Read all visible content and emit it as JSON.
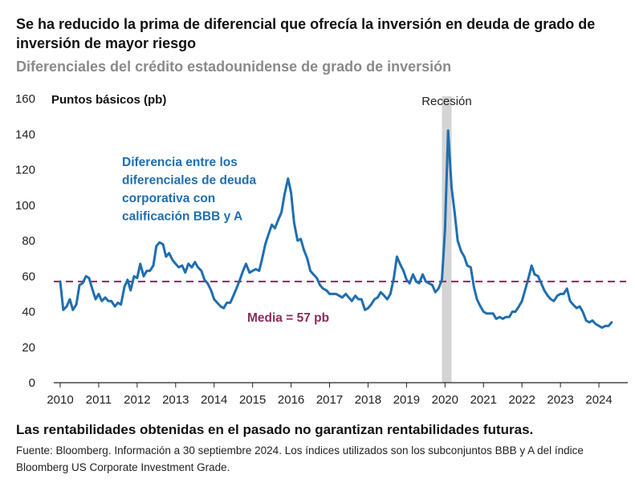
{
  "header": {
    "title": "Se ha reducido la prima de diferencial que ofrecía la inversión en deuda de grado de inversión de mayor riesgo",
    "subtitle": "Diferenciales del crédito estadounidense de grado de inversión"
  },
  "footer": {
    "disclaimer": "Las rentabilidades obtenidas en el pasado no garantizan rentabilidades futuras.",
    "source": "Fuente: Bloomberg. Información a 30 septiembre 2024. Los índices utilizados son los subconjuntos BBB y A del índice Bloomberg US Corporate Investment Grade."
  },
  "chart_data": {
    "type": "line",
    "ylabel": "Puntos básicos (pb)",
    "ylim": [
      0,
      160
    ],
    "yticks": [
      0,
      20,
      40,
      60,
      80,
      100,
      120,
      140,
      160
    ],
    "xlim": [
      2010,
      2024.75
    ],
    "xticks": [
      2010,
      2011,
      2012,
      2013,
      2014,
      2015,
      2016,
      2017,
      2018,
      2019,
      2020,
      2021,
      2022,
      2023,
      2024
    ],
    "grid": false,
    "series_annotation": "Diferencia entre los diferenciales de deuda corporativa con calificación BBB y A",
    "series_color": "#1f6eb0",
    "mean": {
      "value": 57,
      "label": "Media = 57 pb",
      "color": "#8b2a5c"
    },
    "recession": {
      "label": "Recesión",
      "start": 2019.92,
      "end": 2020.17,
      "color": "#d4d4d4"
    },
    "series": [
      {
        "values": [
          [
            2010.0,
            57
          ],
          [
            2010.08,
            41
          ],
          [
            2010.17,
            43
          ],
          [
            2010.25,
            47
          ],
          [
            2010.33,
            41
          ],
          [
            2010.42,
            44
          ],
          [
            2010.5,
            55
          ],
          [
            2010.58,
            56
          ],
          [
            2010.67,
            60
          ],
          [
            2010.75,
            59
          ],
          [
            2010.83,
            53
          ],
          [
            2010.92,
            47
          ],
          [
            2011.0,
            50
          ],
          [
            2011.08,
            46
          ],
          [
            2011.17,
            48
          ],
          [
            2011.25,
            46
          ],
          [
            2011.33,
            46
          ],
          [
            2011.42,
            43
          ],
          [
            2011.5,
            45
          ],
          [
            2011.58,
            44
          ],
          [
            2011.67,
            54
          ],
          [
            2011.75,
            58
          ],
          [
            2011.83,
            52
          ],
          [
            2011.92,
            60
          ],
          [
            2012.0,
            59
          ],
          [
            2012.08,
            67
          ],
          [
            2012.17,
            60
          ],
          [
            2012.25,
            63
          ],
          [
            2012.33,
            63
          ],
          [
            2012.42,
            66
          ],
          [
            2012.5,
            77
          ],
          [
            2012.58,
            79
          ],
          [
            2012.67,
            78
          ],
          [
            2012.75,
            71
          ],
          [
            2012.83,
            73
          ],
          [
            2012.92,
            69
          ],
          [
            2013.0,
            67
          ],
          [
            2013.08,
            65
          ],
          [
            2013.17,
            66
          ],
          [
            2013.25,
            62
          ],
          [
            2013.33,
            67
          ],
          [
            2013.42,
            65
          ],
          [
            2013.5,
            68
          ],
          [
            2013.58,
            65
          ],
          [
            2013.67,
            63
          ],
          [
            2013.75,
            58
          ],
          [
            2013.83,
            56
          ],
          [
            2013.92,
            52
          ],
          [
            2014.0,
            47
          ],
          [
            2014.08,
            45
          ],
          [
            2014.17,
            43
          ],
          [
            2014.25,
            42
          ],
          [
            2014.33,
            45
          ],
          [
            2014.42,
            45
          ],
          [
            2014.5,
            49
          ],
          [
            2014.58,
            53
          ],
          [
            2014.67,
            58
          ],
          [
            2014.75,
            63
          ],
          [
            2014.83,
            67
          ],
          [
            2014.92,
            62
          ],
          [
            2015.0,
            63
          ],
          [
            2015.08,
            64
          ],
          [
            2015.17,
            63
          ],
          [
            2015.25,
            70
          ],
          [
            2015.33,
            78
          ],
          [
            2015.42,
            84
          ],
          [
            2015.5,
            89
          ],
          [
            2015.58,
            87
          ],
          [
            2015.67,
            92
          ],
          [
            2015.75,
            96
          ],
          [
            2015.83,
            106
          ],
          [
            2015.92,
            115
          ],
          [
            2016.0,
            107
          ],
          [
            2016.08,
            90
          ],
          [
            2016.17,
            80
          ],
          [
            2016.25,
            81
          ],
          [
            2016.33,
            75
          ],
          [
            2016.42,
            70
          ],
          [
            2016.5,
            63
          ],
          [
            2016.58,
            61
          ],
          [
            2016.67,
            59
          ],
          [
            2016.75,
            55
          ],
          [
            2016.83,
            53
          ],
          [
            2016.92,
            52
          ],
          [
            2017.0,
            50
          ],
          [
            2017.08,
            50
          ],
          [
            2017.17,
            50
          ],
          [
            2017.25,
            49
          ],
          [
            2017.33,
            48
          ],
          [
            2017.42,
            50
          ],
          [
            2017.5,
            48
          ],
          [
            2017.58,
            46
          ],
          [
            2017.67,
            49
          ],
          [
            2017.75,
            47
          ],
          [
            2017.83,
            47
          ],
          [
            2017.92,
            41
          ],
          [
            2018.0,
            42
          ],
          [
            2018.08,
            44
          ],
          [
            2018.17,
            47
          ],
          [
            2018.25,
            48
          ],
          [
            2018.33,
            51
          ],
          [
            2018.42,
            49
          ],
          [
            2018.5,
            47
          ],
          [
            2018.58,
            50
          ],
          [
            2018.67,
            59
          ],
          [
            2018.75,
            71
          ],
          [
            2018.83,
            67
          ],
          [
            2018.92,
            63
          ],
          [
            2019.0,
            58
          ],
          [
            2019.08,
            56
          ],
          [
            2019.17,
            61
          ],
          [
            2019.25,
            57
          ],
          [
            2019.33,
            56
          ],
          [
            2019.42,
            61
          ],
          [
            2019.5,
            57
          ],
          [
            2019.58,
            56
          ],
          [
            2019.67,
            55
          ],
          [
            2019.75,
            51
          ],
          [
            2019.83,
            53
          ],
          [
            2019.92,
            58
          ],
          [
            2020.0,
            86
          ],
          [
            2020.08,
            142
          ],
          [
            2020.17,
            110
          ],
          [
            2020.25,
            96
          ],
          [
            2020.33,
            80
          ],
          [
            2020.42,
            74
          ],
          [
            2020.5,
            71
          ],
          [
            2020.58,
            66
          ],
          [
            2020.67,
            65
          ],
          [
            2020.75,
            54
          ],
          [
            2020.83,
            47
          ],
          [
            2020.92,
            43
          ],
          [
            2021.0,
            40
          ],
          [
            2021.08,
            39
          ],
          [
            2021.17,
            39
          ],
          [
            2021.25,
            39
          ],
          [
            2021.33,
            36
          ],
          [
            2021.42,
            37
          ],
          [
            2021.5,
            36
          ],
          [
            2021.58,
            37
          ],
          [
            2021.67,
            37
          ],
          [
            2021.75,
            40
          ],
          [
            2021.83,
            40
          ],
          [
            2021.92,
            43
          ],
          [
            2022.0,
            46
          ],
          [
            2022.08,
            52
          ],
          [
            2022.17,
            59
          ],
          [
            2022.25,
            66
          ],
          [
            2022.33,
            61
          ],
          [
            2022.42,
            60
          ],
          [
            2022.5,
            56
          ],
          [
            2022.58,
            52
          ],
          [
            2022.67,
            49
          ],
          [
            2022.75,
            47
          ],
          [
            2022.83,
            46
          ],
          [
            2022.92,
            49
          ],
          [
            2023.0,
            50
          ],
          [
            2023.08,
            50
          ],
          [
            2023.17,
            53
          ],
          [
            2023.25,
            46
          ],
          [
            2023.33,
            44
          ],
          [
            2023.42,
            42
          ],
          [
            2023.5,
            43
          ],
          [
            2023.58,
            40
          ],
          [
            2023.67,
            35
          ],
          [
            2023.75,
            34
          ],
          [
            2023.83,
            35
          ],
          [
            2023.92,
            33
          ],
          [
            2024.0,
            32
          ],
          [
            2024.08,
            31
          ],
          [
            2024.17,
            32
          ],
          [
            2024.25,
            32
          ],
          [
            2024.33,
            34
          ]
        ]
      }
    ]
  }
}
